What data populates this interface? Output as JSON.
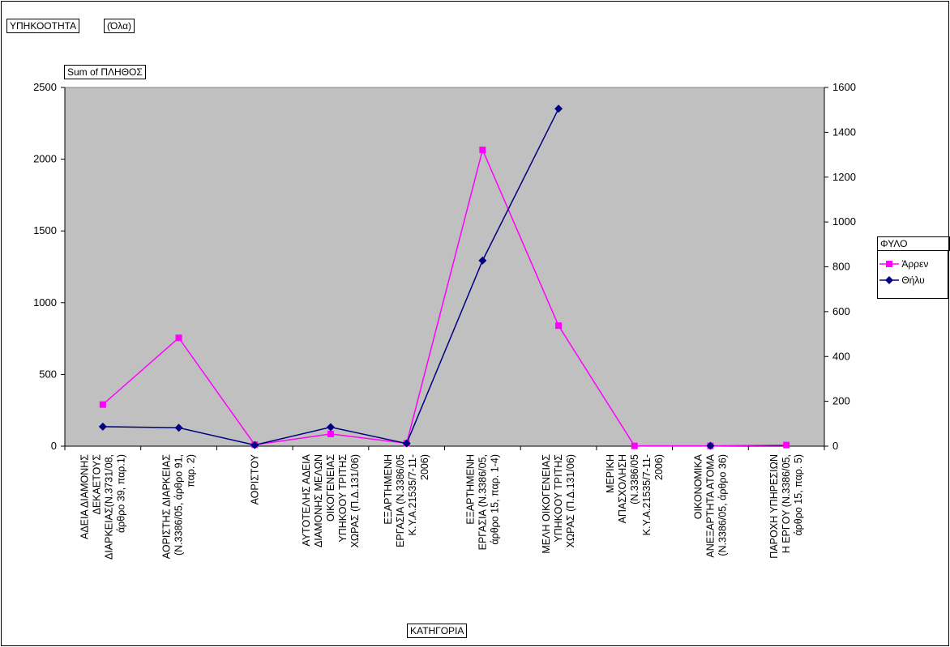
{
  "page_fields": {
    "filter_field": "ΥΠΗΚΟΟΤΗΤΑ",
    "filter_value": "(Όλα)",
    "data_field": "Sum of ΠΛΗΘΟΣ",
    "category_field": "ΚΑΤΗΓΟΡΙΑ",
    "series_field": "ΦΥΛΟ"
  },
  "chart_data": {
    "type": "line",
    "title": "",
    "xlabel": "ΚΑΤΗΓΟΡΙΑ",
    "ylabel": "Sum of ΠΛΗΘΟΣ",
    "categories": [
      [
        "ΑΔΕΙΑ ΔΙΑΜΟΝΗΣ",
        "ΔΕΚΑΕΤΟΥΣ",
        "ΔΙΑΡΚΕΙΑΣ(Ν.3731/08,",
        "άρθρο 39, παρ.1)"
      ],
      [
        "ΑΟΡΙΣΤΗΣ ΔΙΑΡΚΕΙΑΣ",
        "(Ν.3386/05, άρθρο 91,",
        "παρ. 2)"
      ],
      [
        "ΑΟΡΙΣΤΟΥ"
      ],
      [
        "ΑΥΤΟΤΕΛΗΣ ΑΔΕΙΑ",
        "ΔΙΑΜΟΝΗΣ ΜΕΛΩΝ",
        "ΟΙΚΟΓΕΝΕΙΑΣ",
        "ΥΠΗΚΟΟΥ ΤΡΙΤΗΣ",
        "ΧΩΡΑΣ (Π.Δ.131/06)"
      ],
      [
        "ΕΞΑΡΤΗΜΕΝΗ",
        "ΕΡΓΑΣΙΑ (Ν.3386/05",
        "Κ.Υ.Α.21535/7-11-",
        "2006)"
      ],
      [
        "ΕΞΑΡΤΗΜΕΝΗ",
        "ΕΡΓΑΣΙΑ (Ν.3386/05,",
        "άρθρο 15, παρ. 1-4)"
      ],
      [
        "ΜΕΛΗ ΟΙΚΟΓΕΝΕΙΑΣ",
        "ΥΠΗΚΟΟΥ ΤΡΙΤΗΣ",
        "ΧΩΡΑΣ (Π.Δ.131/06)"
      ],
      [
        "ΜΕΡΙΚΗ",
        "ΑΠΑΣΧΟΛΗΣΗ",
        "(Ν.3386/05",
        "Κ.Υ.Α.21535/7-11-",
        "2006)"
      ],
      [
        "ΟΙΚΟΝΟΜΙΚΑ",
        "ΑΝΕΞΑΡΤΗΤΑ ΑΤΟΜΑ",
        "(Ν.3386/05, άρθρο 36)"
      ],
      [
        "ΠΑΡΟΧΗ ΥΠΗΡΕΣΙΩΝ",
        "Η ΕΡΓΟΥ (Ν.3386/05,",
        "άρθρο 15, παρ. 5)"
      ]
    ],
    "y_left": {
      "min": 0,
      "max": 2500,
      "ticks": [
        "0",
        "500",
        "1000",
        "1500",
        "2000",
        "2500"
      ]
    },
    "y_right": {
      "min": 0,
      "max": 1600,
      "ticks": [
        "0",
        "200",
        "400",
        "600",
        "800",
        "1000",
        "1200",
        "1400",
        "1600"
      ]
    },
    "legend_title": "ΦΥΛΟ",
    "legend_position": "right",
    "plot_background": "#c0c0c0",
    "series": [
      {
        "name": "Άρρεν",
        "axis": "left",
        "color": "#ff00ff",
        "marker": "square",
        "values": [
          290,
          755,
          10,
          85,
          20,
          2065,
          840,
          2,
          2,
          8
        ]
      },
      {
        "name": "Θήλυ",
        "axis": "right",
        "color": "#000080",
        "marker": "diamond",
        "values": [
          87,
          82,
          5,
          85,
          12,
          828,
          1505,
          null,
          2,
          null
        ]
      }
    ]
  }
}
